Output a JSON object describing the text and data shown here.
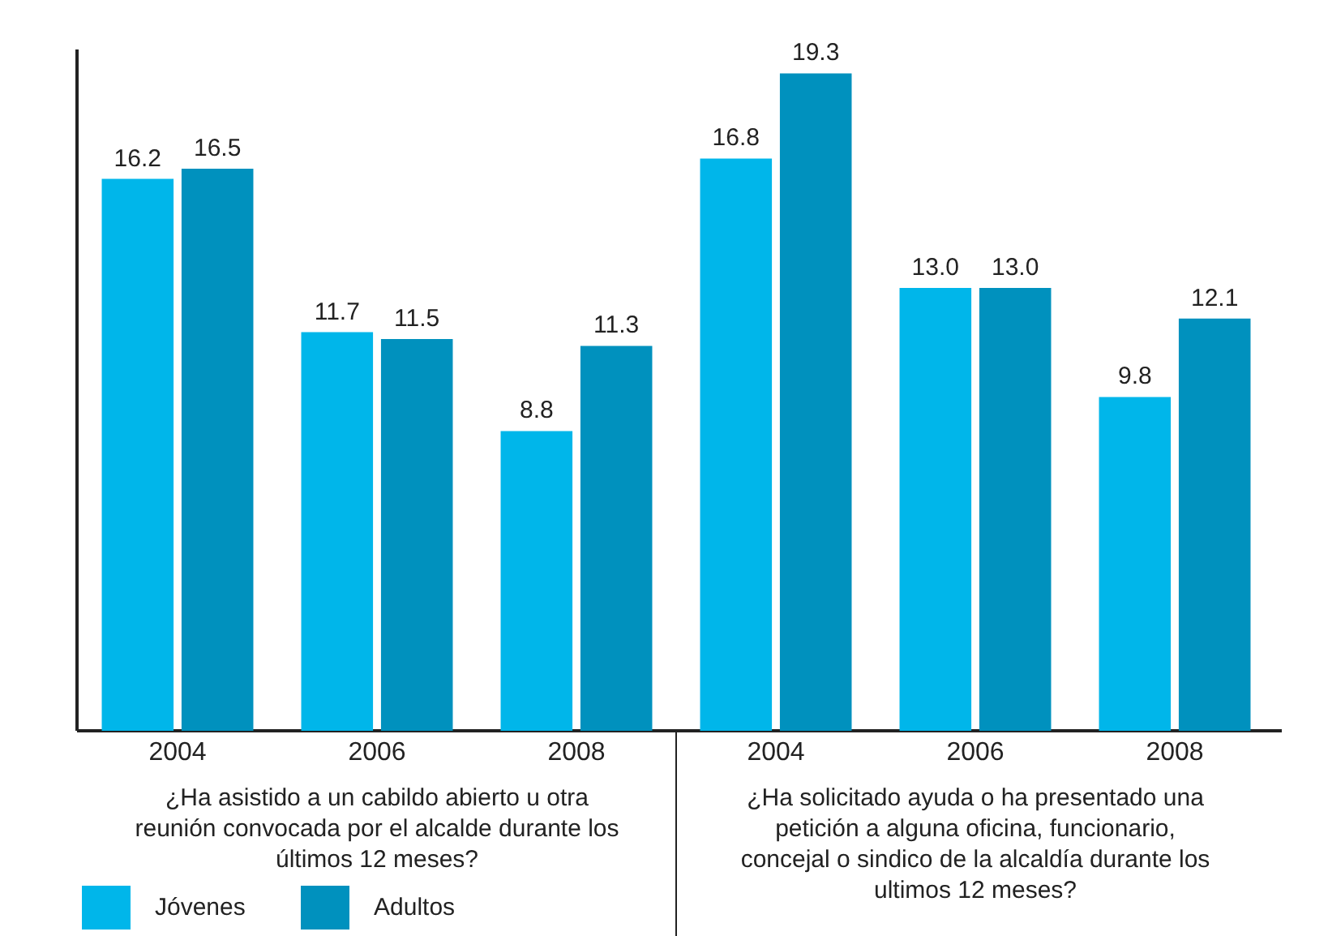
{
  "chart_data": {
    "type": "bar",
    "categories": [
      "2004",
      "2006",
      "2008",
      "2004",
      "2006",
      "2008"
    ],
    "series": [
      {
        "name": "Jóvenes",
        "color": "#00b6ea",
        "values": [
          16.2,
          11.7,
          8.8,
          16.8,
          13.0,
          9.8
        ],
        "value_labels": [
          "16.2",
          "11.7",
          "8.8",
          "16.8",
          "13.0",
          "9.8"
        ]
      },
      {
        "name": "Adultos",
        "color": "#0091be",
        "values": [
          16.5,
          11.5,
          11.3,
          19.3,
          13.0,
          12.1
        ],
        "value_labels": [
          "16.5",
          "11.5",
          "11.3",
          "19.3",
          "13.0",
          "12.1"
        ]
      }
    ],
    "ylim": [
      0,
      20
    ],
    "grid": false,
    "legend": "bottom left",
    "annotations": [
      "¿Ha asistido a un cabildo abierto u otra reunión convocada por el alcalde durante los últimos 12 meses?",
      "¿Ha solicitado ayuda o ha presentado una petición a alguna oficina, funcionario, concejal o sindico de la alcaldía durante los ultimos 12 meses?"
    ]
  }
}
